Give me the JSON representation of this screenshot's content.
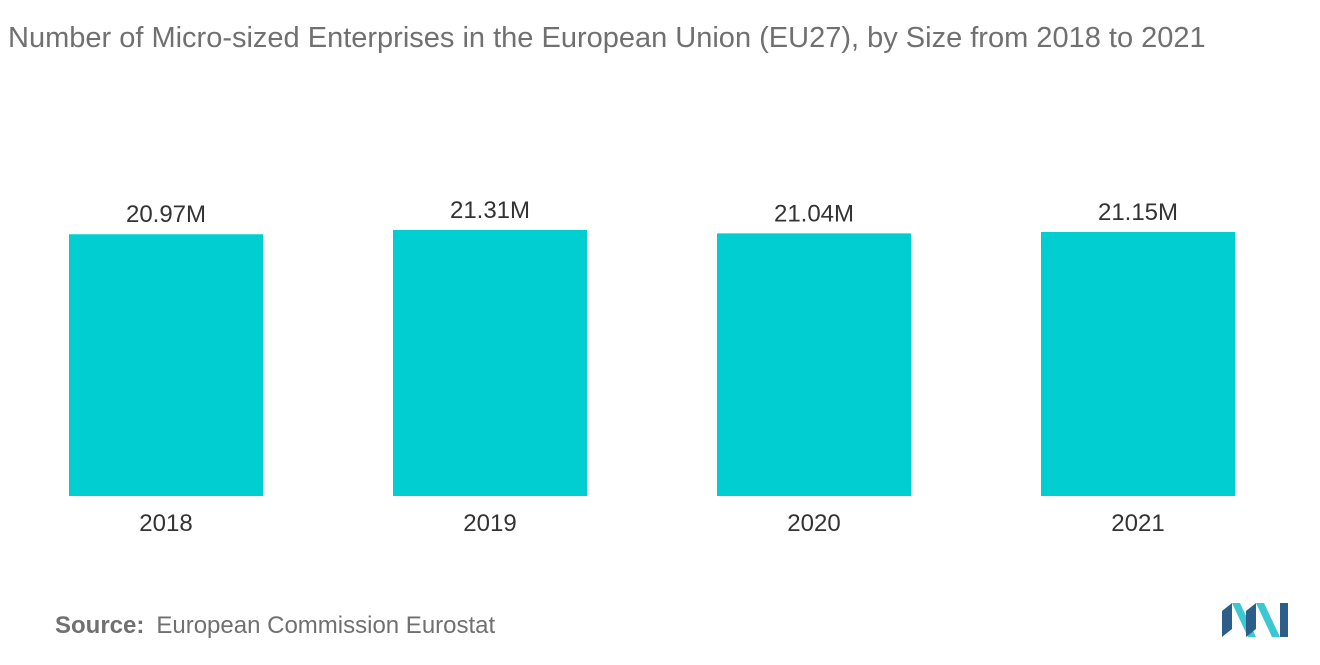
{
  "title": "Number of Micro-sized Enterprises in the European Union (EU27), by Size from 2018 to 2021",
  "source": {
    "label": "Source:",
    "text": "European Commission Eurostat"
  },
  "colors": {
    "bar": "#00CED1",
    "text": "#333333",
    "muted": "#707070",
    "logo_dark": "#2B5F8A",
    "logo_light": "#3CC8D2"
  },
  "chart_data": {
    "type": "bar",
    "categories": [
      "2018",
      "2019",
      "2020",
      "2021"
    ],
    "values": [
      20.97,
      21.31,
      21.04,
      21.15
    ],
    "value_labels": [
      "20.97M",
      "21.31M",
      "21.04M",
      "21.15M"
    ],
    "title": "Number of Micro-sized Enterprises in the European Union (EU27), by Size from 2018 to 2021",
    "xlabel": "",
    "ylabel": "",
    "grid": false,
    "legend": "none"
  }
}
